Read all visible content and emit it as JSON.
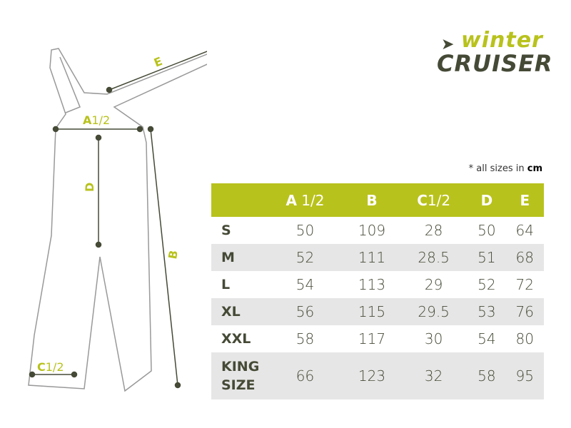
{
  "brand": {
    "line1": "winter",
    "line2": "CRUISER",
    "colors": {
      "lime": "#b8c21c",
      "olive": "#454a36"
    }
  },
  "diagram": {
    "labels": {
      "e": "E",
      "a": "A",
      "a_frac": "1/2",
      "d": "D",
      "b": "B",
      "c": "C",
      "c_frac": "1/2"
    }
  },
  "note": {
    "prefix": "* all sizes in ",
    "unit": "cm"
  },
  "table": {
    "headers": [
      {
        "main": "A",
        "frac": " 1/2"
      },
      {
        "main": "B",
        "frac": ""
      },
      {
        "main": "C",
        "frac": "1/2"
      },
      {
        "main": "D",
        "frac": ""
      },
      {
        "main": "E",
        "frac": ""
      }
    ],
    "rows": [
      {
        "size": "S",
        "values": [
          "50",
          "109",
          "28",
          "50",
          "64"
        ]
      },
      {
        "size": "M",
        "values": [
          "52",
          "111",
          "28.5",
          "51",
          "68"
        ]
      },
      {
        "size": "L",
        "values": [
          "54",
          "113",
          "29",
          "52",
          "72"
        ]
      },
      {
        "size": "XL",
        "values": [
          "56",
          "115",
          "29.5",
          "53",
          "76"
        ]
      },
      {
        "size": "XXL",
        "values": [
          "58",
          "117",
          "30",
          "54",
          "80"
        ]
      },
      {
        "size": "KING SIZE",
        "values": [
          "66",
          "123",
          "32",
          "58",
          "95"
        ]
      }
    ]
  }
}
